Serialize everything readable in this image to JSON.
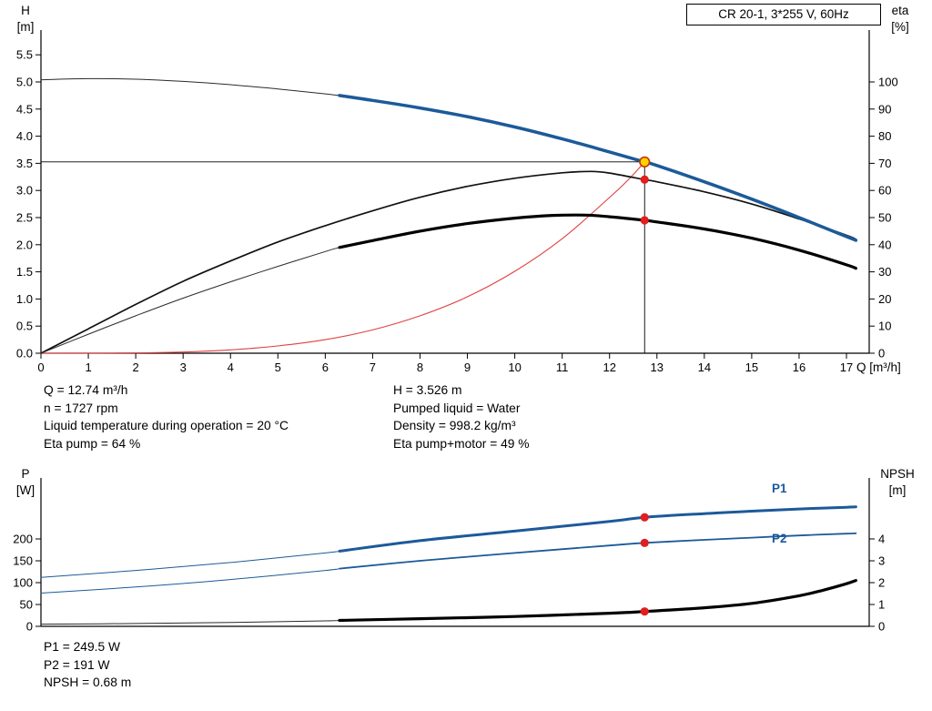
{
  "colors": {
    "curve_blue": "#1c5a99",
    "curve_black": "#000000",
    "thin_line": "#2a2a2a",
    "system_red": "#e04040",
    "marker_red": "#e01f1f",
    "marker_yellow": "#ffd400",
    "marker_ring": "#c83200"
  },
  "info_top": {
    "left": [
      "Q = 12.74 m³/h",
      "n = 1727 rpm",
      "Liquid temperature during operation = 20 °C",
      "Eta pump = 64 %"
    ],
    "right": [
      "H = 3.526 m",
      "Pumped liquid = Water",
      "Density = 998.2 kg/m³",
      "Eta pump+motor = 49 %"
    ]
  },
  "info_bottom": [
    "P1 = 249.5 W",
    "P2 = 191 W",
    "NPSH = 0.68 m"
  ],
  "chart_data": [
    {
      "type": "line",
      "title": "CR 20-1, 3*255 V, 60Hz",
      "x_axis": {
        "label": "Q [m³/h]",
        "min": 0,
        "max": 17.5,
        "tick_values": [
          0,
          1,
          2,
          3,
          4,
          5,
          6,
          7,
          8,
          9,
          10,
          11,
          12,
          13,
          14,
          15,
          16,
          17
        ],
        "tick_labels": [
          "0",
          "1",
          "2",
          "3",
          "4",
          "5",
          "6",
          "7",
          "8",
          "9",
          "10",
          "11",
          "12",
          "13",
          "14",
          "15",
          "16",
          "17"
        ]
      },
      "y_left": {
        "label": "H",
        "unit": "[m]",
        "min": 0,
        "max": 5.9,
        "tick_values": [
          0.0,
          0.5,
          1.0,
          1.5,
          2.0,
          2.5,
          3.0,
          3.5,
          4.0,
          4.5,
          5.0,
          5.5
        ],
        "tick_labels": [
          "0.0",
          "0.5",
          "1.0",
          "1.5",
          "2.0",
          "2.5",
          "3.0",
          "3.5",
          "4.0",
          "4.5",
          "5.0",
          "5.5"
        ]
      },
      "y_right": {
        "label": "eta",
        "unit": "[%]",
        "min": 0,
        "max": 118,
        "tick_values": [
          0,
          10,
          20,
          30,
          40,
          50,
          60,
          70,
          80,
          90,
          100
        ],
        "tick_labels": [
          "0",
          "10",
          "20",
          "30",
          "40",
          "50",
          "60",
          "70",
          "80",
          "90",
          "100"
        ]
      },
      "duty_point": {
        "q": 12.74,
        "h": 3.526,
        "eta_pump": 64,
        "eta_pump_motor": 49
      },
      "crosshair": {
        "q": 12.74,
        "v": 3.526
      },
      "series": [
        {
          "name": "qh-extended",
          "axis": "left",
          "color": "#2a2a2a",
          "width": 1,
          "points": [
            [
              0,
              5.04
            ],
            [
              1,
              5.06
            ],
            [
              2,
              5.05
            ],
            [
              3,
              5.01
            ],
            [
              4,
              4.95
            ],
            [
              5,
              4.87
            ],
            [
              6,
              4.78
            ],
            [
              6.3,
              4.75
            ]
          ]
        },
        {
          "name": "system-curve",
          "axis": "left",
          "color": "#e04040",
          "width": 1.1,
          "points": [
            [
              0,
              0
            ],
            [
              1,
              0.001
            ],
            [
              2,
              0.005
            ],
            [
              3,
              0.022
            ],
            [
              4,
              0.062
            ],
            [
              5,
              0.135
            ],
            [
              6,
              0.25
            ],
            [
              7,
              0.43
            ],
            [
              8,
              0.69
            ],
            [
              9,
              1.04
            ],
            [
              10,
              1.51
            ],
            [
              11,
              2.11
            ],
            [
              12,
              2.87
            ],
            [
              12.4,
              3.2
            ],
            [
              12.74,
              3.526
            ]
          ]
        },
        {
          "name": "eta-pump",
          "axis": "right",
          "color": "#111111",
          "width": 1.7,
          "points": [
            [
              0,
              0
            ],
            [
              1,
              9
            ],
            [
              2,
              18
            ],
            [
              3,
              26.5
            ],
            [
              4,
              34
            ],
            [
              5,
              41
            ],
            [
              6,
              47
            ],
            [
              7,
              52.5
            ],
            [
              8,
              57.5
            ],
            [
              9,
              61.5
            ],
            [
              10,
              64.5
            ],
            [
              11,
              66.5
            ],
            [
              11.6,
              67
            ],
            [
              12,
              66.4
            ],
            [
              12.74,
              64
            ],
            [
              13,
              63.2
            ],
            [
              14,
              59.5
            ],
            [
              15,
              55
            ],
            [
              16,
              49.5
            ],
            [
              17,
              43.5
            ],
            [
              17.2,
              42
            ]
          ]
        },
        {
          "name": "eta-pump-motor-extended",
          "axis": "right",
          "color": "#2a2a2a",
          "width": 1,
          "points": [
            [
              0,
              0
            ],
            [
              1,
              7
            ],
            [
              2,
              13.8
            ],
            [
              3,
              20.3
            ],
            [
              4,
              26.3
            ],
            [
              5,
              32
            ],
            [
              6,
              37.5
            ],
            [
              6.3,
              39
            ]
          ]
        },
        {
          "name": "eta-pump-motor",
          "axis": "right",
          "color": "#000000",
          "width": 3.2,
          "points": [
            [
              6.3,
              39
            ],
            [
              7,
              41.5
            ],
            [
              8,
              45
            ],
            [
              9,
              47.8
            ],
            [
              10,
              49.8
            ],
            [
              10.8,
              50.8
            ],
            [
              11.5,
              50.9
            ],
            [
              12,
              50.3
            ],
            [
              12.74,
              49
            ],
            [
              13,
              48.4
            ],
            [
              14,
              45.8
            ],
            [
              15,
              42.4
            ],
            [
              16,
              38
            ],
            [
              17,
              32.6
            ],
            [
              17.2,
              31.3
            ]
          ]
        },
        {
          "name": "qh-curve",
          "axis": "left",
          "color": "#1c5a99",
          "width": 3.5,
          "points": [
            [
              6.3,
              4.75
            ],
            [
              7,
              4.66
            ],
            [
              8,
              4.52
            ],
            [
              9,
              4.36
            ],
            [
              10,
              4.17
            ],
            [
              11,
              3.95
            ],
            [
              12,
              3.71
            ],
            [
              12.74,
              3.526
            ],
            [
              13,
              3.46
            ],
            [
              14,
              3.16
            ],
            [
              15,
              2.84
            ],
            [
              16,
              2.5
            ],
            [
              17,
              2.15
            ],
            [
              17.2,
              2.08
            ]
          ]
        }
      ],
      "markers": [
        {
          "axis": "right",
          "q": 12.74,
          "v": 64,
          "fill": "#e01f1f",
          "r": 4.6
        },
        {
          "axis": "right",
          "q": 12.74,
          "v": 49,
          "fill": "#e01f1f",
          "r": 4.6
        },
        {
          "axis": "left",
          "q": 12.74,
          "v": 3.526,
          "fill": "#ffd400",
          "stroke": "#c83200",
          "r": 5.3
        }
      ]
    },
    {
      "type": "line",
      "x_axis": {
        "label": "",
        "min": 0,
        "max": 17.5,
        "tick_values": [],
        "tick_labels": []
      },
      "y_left": {
        "label": "P",
        "unit": "[W]",
        "min": 0,
        "max": 330,
        "tick_values": [
          0,
          50,
          100,
          150,
          200
        ],
        "tick_labels": [
          "0",
          "50",
          "100",
          "150",
          "200"
        ]
      },
      "y_right": {
        "label": "NPSH",
        "unit": "[m]",
        "min": 0,
        "max": 6.8,
        "tick_values": [
          0,
          1,
          2,
          3,
          4
        ],
        "tick_labels": [
          "0",
          "1",
          "2",
          "3",
          "4"
        ]
      },
      "curve_labels": [
        {
          "text": "P1"
        },
        {
          "text": "P2"
        }
      ],
      "duty_point": {
        "q": 12.74,
        "p1": 249.5,
        "p2": 191,
        "npsh": 0.68
      },
      "series": [
        {
          "name": "p1-extended",
          "axis": "left",
          "color": "#1c5a99",
          "width": 1,
          "points": [
            [
              0,
              112
            ],
            [
              2,
              128
            ],
            [
              4,
              146
            ],
            [
              6,
              168
            ],
            [
              6.3,
              172
            ]
          ]
        },
        {
          "name": "p1-curve",
          "axis": "left",
          "color": "#1c5a99",
          "width": 3,
          "points": [
            [
              6.3,
              172
            ],
            [
              8,
              196
            ],
            [
              10,
              218
            ],
            [
              12,
              240
            ],
            [
              12.74,
              249.5
            ],
            [
              14,
              258
            ],
            [
              15,
              263.5
            ],
            [
              16,
              268.5
            ],
            [
              17,
              272.5
            ],
            [
              17.2,
              273.5
            ]
          ]
        },
        {
          "name": "p2-extended",
          "axis": "left",
          "color": "#1c5a99",
          "width": 1,
          "points": [
            [
              0,
              76
            ],
            [
              2,
              90
            ],
            [
              4,
              107
            ],
            [
              6,
              128
            ],
            [
              6.3,
              132
            ]
          ]
        },
        {
          "name": "p2-curve",
          "axis": "left",
          "color": "#1c5a99",
          "width": 1.8,
          "points": [
            [
              6.3,
              132
            ],
            [
              8,
              150
            ],
            [
              10,
              168
            ],
            [
              12,
              185
            ],
            [
              12.74,
              191
            ],
            [
              14,
              198
            ],
            [
              15,
              203
            ],
            [
              16,
              208
            ],
            [
              17,
              212
            ],
            [
              17.2,
              213
            ]
          ]
        },
        {
          "name": "npsh-extended",
          "axis": "right",
          "color": "#2a2a2a",
          "width": 1,
          "points": [
            [
              0,
              0.1
            ],
            [
              2,
              0.13
            ],
            [
              4,
              0.18
            ],
            [
              6,
              0.25
            ],
            [
              6.3,
              0.27
            ]
          ]
        },
        {
          "name": "npsh-curve",
          "axis": "right",
          "color": "#000000",
          "width": 3.2,
          "points": [
            [
              6.3,
              0.27
            ],
            [
              8,
              0.35
            ],
            [
              10,
              0.45
            ],
            [
              12,
              0.6
            ],
            [
              12.74,
              0.68
            ],
            [
              14,
              0.85
            ],
            [
              15,
              1.05
            ],
            [
              16,
              1.4
            ],
            [
              16.5,
              1.65
            ],
            [
              17,
              1.95
            ],
            [
              17.2,
              2.1
            ]
          ]
        }
      ],
      "markers": [
        {
          "axis": "left",
          "q": 12.74,
          "v": 249.5,
          "fill": "#e01f1f",
          "r": 4.6
        },
        {
          "axis": "left",
          "q": 12.74,
          "v": 191,
          "fill": "#e01f1f",
          "r": 4.6
        },
        {
          "axis": "right",
          "q": 12.74,
          "v": 0.68,
          "fill": "#e01f1f",
          "r": 4.6
        }
      ]
    }
  ]
}
